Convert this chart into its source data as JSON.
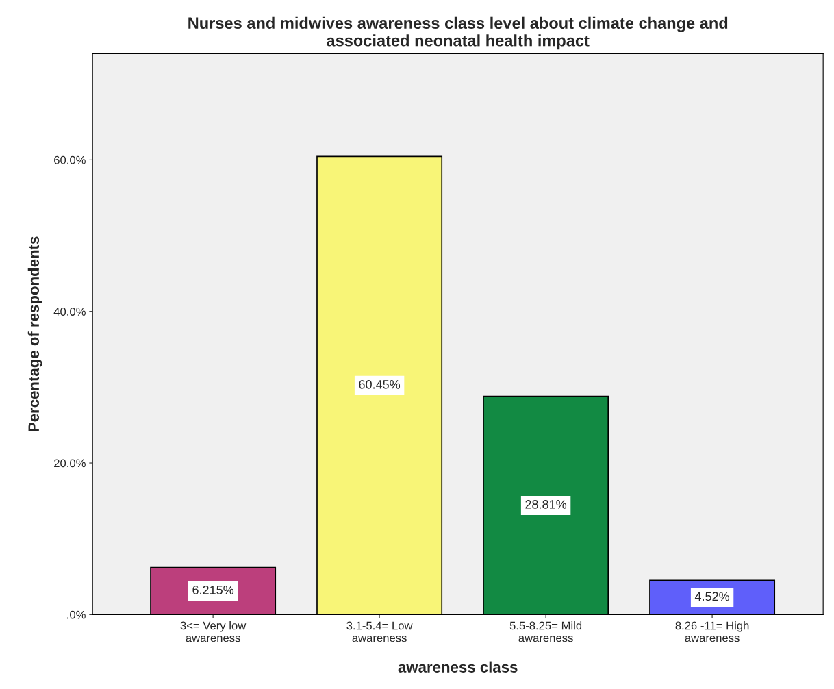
{
  "chart_data": {
    "type": "bar",
    "title": "Nurses and midwives awareness class level about climate change and\nassociated neonatal health impact",
    "xlabel": "awareness class",
    "ylabel": "Percentage of respondents",
    "categories": [
      "3<= Very low\nawareness",
      "3.1-5.4= Low\nawareness",
      "5.5-8.25= Mild\nawareness",
      "8.26 -11= High\nawareness"
    ],
    "values": [
      6.215,
      60.45,
      28.81,
      4.52
    ],
    "value_labels": [
      "6.215%",
      "60.45%",
      "28.81%",
      "4.52%"
    ],
    "colors": [
      "#bc3f7c",
      "#f8f577",
      "#128a43",
      "#5f5ffa"
    ],
    "ylim": [
      0,
      74
    ],
    "yticks": [
      {
        "value": 0,
        "label": ".0%"
      },
      {
        "value": 20,
        "label": "20.0%"
      },
      {
        "value": 40,
        "label": "40.0%"
      },
      {
        "value": 60,
        "label": "60.0%"
      }
    ],
    "grid": false,
    "legend": false
  }
}
